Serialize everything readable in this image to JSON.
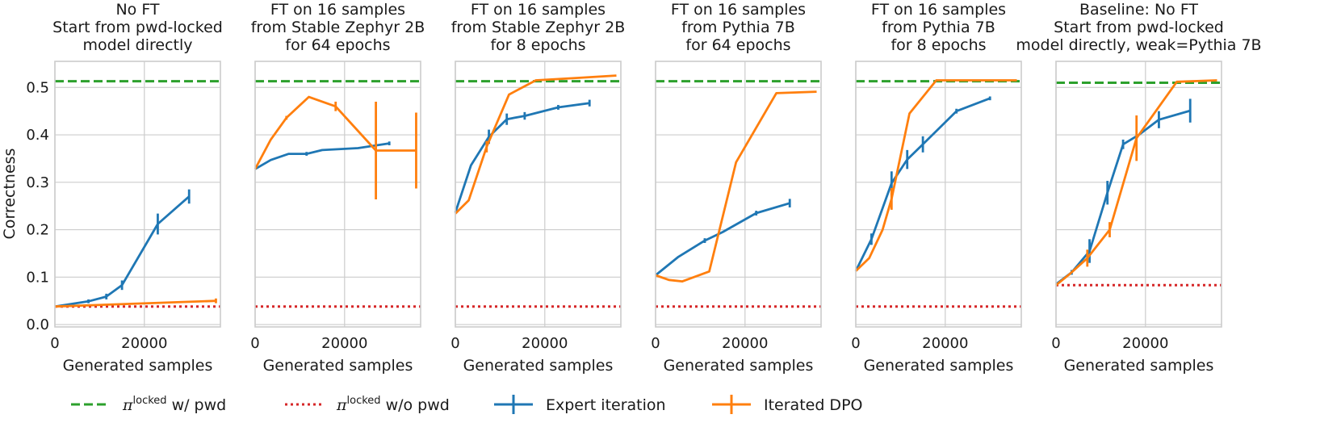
{
  "chart_data": {
    "type": "line",
    "ylabel": "Correctness",
    "xlabel": "Generated samples",
    "xlim": [
      0,
      37000
    ],
    "ylim": [
      -0.005,
      0.555
    ],
    "xticks": [
      0,
      20000
    ],
    "xtick_labels": [
      "0",
      "20000"
    ],
    "yticks": [
      0.0,
      0.1,
      0.2,
      0.3,
      0.4,
      0.5
    ],
    "ytick_labels": [
      "0.0",
      "0.1",
      "0.2",
      "0.3",
      "0.4",
      "0.5"
    ],
    "grid": true,
    "colors": {
      "expert": "#1f77b4",
      "dpo": "#ff7f0e",
      "with_pwd": "#2ca02c",
      "without_pwd": "#d62728",
      "grid": "#cccccc",
      "spine": "#cccccc"
    },
    "legend": [
      {
        "key": "with_pwd",
        "symbol": "π",
        "sup": "locked",
        "suffix": " w/ pwd",
        "style": "dashed"
      },
      {
        "key": "without_pwd",
        "symbol": "π",
        "sup": "locked",
        "suffix": " w/o pwd",
        "style": "dotted"
      },
      {
        "key": "expert",
        "label": "Expert iteration",
        "style": "errorbar"
      },
      {
        "key": "dpo",
        "label": "Iterated DPO",
        "style": "errorbar"
      }
    ],
    "panels": [
      {
        "title": [
          "No FT",
          "Start from pwd-locked",
          "model directly"
        ],
        "with_pwd": 0.513,
        "without_pwd": 0.038,
        "series": {
          "expert": {
            "x": [
              0,
              7500,
              11500,
              15000,
              23000,
              30000
            ],
            "y": [
              0.038,
              0.049,
              0.059,
              0.083,
              0.212,
              0.27
            ],
            "err": [
              0.0,
              0.004,
              0.006,
              0.01,
              0.022,
              0.015
            ]
          },
          "dpo": {
            "x": [
              0,
              36000
            ],
            "y": [
              0.038,
              0.05
            ],
            "err": [
              0.0,
              0.005
            ]
          }
        }
      },
      {
        "title": [
          "FT on 16 samples",
          "from Stable Zephyr 2B",
          "for 64 epochs"
        ],
        "with_pwd": 0.513,
        "without_pwd": 0.038,
        "series": {
          "expert": {
            "x": [
              0,
              3500,
              7500,
              11500,
              15000,
              23000,
              30000
            ],
            "y": [
              0.328,
              0.347,
              0.36,
              0.36,
              0.368,
              0.372,
              0.382
            ],
            "err": [
              0.0,
              0.0,
              0.0,
              0.004,
              0.0,
              0.0,
              0.004
            ]
          },
          "dpo": {
            "x": [
              0,
              3500,
              7000,
              12000,
              18000,
              27000,
              36000
            ],
            "y": [
              0.328,
              0.39,
              0.436,
              0.48,
              0.46,
              0.367,
              0.367
            ],
            "err": [
              0.0,
              0.0,
              0.004,
              0.0,
              0.01,
              0.103,
              0.08
            ]
          }
        }
      },
      {
        "title": [
          "FT on 16 samples",
          "from Stable Zephyr 2B",
          "for 8 epochs"
        ],
        "with_pwd": 0.513,
        "without_pwd": 0.038,
        "series": {
          "expert": {
            "x": [
              0,
              3500,
              7500,
              11500,
              15500,
              23000,
              30000
            ],
            "y": [
              0.236,
              0.336,
              0.396,
              0.433,
              0.44,
              0.458,
              0.467
            ],
            "err": [
              0.0,
              0.0,
              0.015,
              0.012,
              0.008,
              0.005,
              0.007
            ]
          },
          "dpo": {
            "x": [
              0,
              3000,
              7000,
              12000,
              18000,
              27000,
              36000
            ],
            "y": [
              0.234,
              0.262,
              0.375,
              0.485,
              0.515,
              0.52,
              0.525
            ],
            "err": [
              0.0,
              0.0,
              0.012,
              0.0,
              0.0,
              0.0,
              0.0
            ]
          }
        }
      },
      {
        "title": [
          "FT on 16 samples",
          "from Pythia 7B",
          "for 64 epochs"
        ],
        "with_pwd": 0.513,
        "without_pwd": 0.038,
        "series": {
          "expert": {
            "x": [
              0,
              5000,
              11000,
              15000,
              22500,
              30000
            ],
            "y": [
              0.104,
              0.142,
              0.177,
              0.195,
              0.235,
              0.256
            ],
            "err": [
              0.0,
              0.0,
              0.005,
              0.0,
              0.005,
              0.009
            ]
          },
          "dpo": {
            "x": [
              0,
              3000,
              6000,
              12000,
              18000,
              27000,
              36000
            ],
            "y": [
              0.104,
              0.094,
              0.091,
              0.112,
              0.342,
              0.488,
              0.491
            ],
            "err": [
              0.0,
              0.0,
              0.0,
              0.0,
              0.0,
              0.0,
              0.0
            ]
          }
        }
      },
      {
        "title": [
          "FT on 16 samples",
          "from Pythia 7B",
          "for 8 epochs"
        ],
        "with_pwd": 0.513,
        "without_pwd": 0.038,
        "series": {
          "expert": {
            "x": [
              0,
              3500,
              8000,
              11500,
              15000,
              22500,
              30000
            ],
            "y": [
              0.113,
              0.18,
              0.298,
              0.348,
              0.38,
              0.45,
              0.477
            ],
            "err": [
              0.0,
              0.012,
              0.025,
              0.02,
              0.017,
              0.005,
              0.004
            ]
          },
          "dpo": {
            "x": [
              0,
              3000,
              6000,
              8000,
              12000,
              18000,
              27000,
              36000
            ],
            "y": [
              0.113,
              0.14,
              0.2,
              0.265,
              0.445,
              0.515,
              0.515,
              0.515
            ],
            "err": [
              0.0,
              0.0,
              0.0,
              0.023,
              0.0,
              0.0,
              0.0,
              0.0
            ]
          }
        }
      },
      {
        "title": [
          "Baseline: No FT",
          "Start from pwd-locked",
          "model directly, weak=Pythia 7B"
        ],
        "with_pwd": 0.51,
        "without_pwd": 0.083,
        "series": {
          "expert": {
            "x": [
              0,
              3500,
              7500,
              11500,
              15000,
              18500,
              23000,
              30000
            ],
            "y": [
              0.085,
              0.11,
              0.155,
              0.278,
              0.38,
              0.4,
              0.432,
              0.451
            ],
            "err": [
              0.0,
              0.005,
              0.025,
              0.025,
              0.01,
              0.0,
              0.018,
              0.025
            ]
          },
          "dpo": {
            "x": [
              0,
              3000,
              7000,
              12000,
              18000,
              27000,
              36000
            ],
            "y": [
              0.083,
              0.106,
              0.14,
              0.2,
              0.393,
              0.512,
              0.515
            ],
            "err": [
              0.0,
              0.0,
              0.018,
              0.016,
              0.048,
              0.0,
              0.0
            ]
          }
        }
      }
    ]
  }
}
